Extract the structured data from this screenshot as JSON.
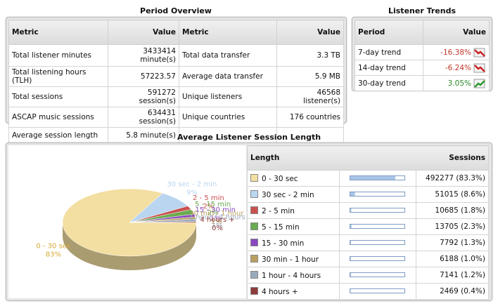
{
  "period_overview": {
    "title": "Period Overview",
    "headers": [
      "Metric",
      "Value",
      "Metric",
      "Value"
    ],
    "rows": [
      [
        "Total listener minutes",
        "3433414 minute(s)",
        "Total data transfer",
        "3.3 TB"
      ],
      [
        "Total listening hours (TLH)",
        "57223.57",
        "Average data transfer",
        "5.9 MB"
      ],
      [
        "Total sessions",
        "591272 session(s)",
        "Unique listeners",
        "46568 listener(s)"
      ],
      [
        "ASCAP music sessions",
        "634431 session(s)",
        "Unique countries",
        "176 countries"
      ],
      [
        "Average session length",
        "5.8 minute(s)"
      ]
    ]
  },
  "listener_trends": {
    "title": "Listener Trends",
    "headers": [
      "Period",
      "Value"
    ],
    "rows": [
      {
        "period": "7-day trend",
        "value": "-16.38%",
        "direction": "down"
      },
      {
        "period": "14-day trend",
        "value": "-6.24%",
        "direction": "down"
      },
      {
        "period": "30-day trend",
        "value": "3.05%",
        "direction": "up"
      }
    ]
  },
  "chart_data": {
    "type": "pie",
    "title": "Average Listener Session Length",
    "table_headers": [
      "Length",
      "Sessions"
    ],
    "categories": [
      "0 - 30 sec",
      "30 sec - 2 min",
      "2 - 5 min",
      "5 - 15 min",
      "15 - 30 min",
      "30 min - 1 hour",
      "1 hour - 4 hours",
      "4 hours +"
    ],
    "values": [
      492277,
      51015,
      10685,
      13705,
      7792,
      6188,
      7141,
      2469
    ],
    "value_labels": [
      "492277 (83.3%)",
      "51015 (8.6%)",
      "10685 (1.8%)",
      "13705 (2.3%)",
      "7792 (1.3%)",
      "6188 (1.0%)",
      "7141 (1.2%)",
      "2469 (0.4%)"
    ],
    "percent_labels": [
      "83%",
      "9%",
      "2%",
      "2%",
      "1%",
      "1%",
      "1%",
      "0%"
    ],
    "colors": [
      "#f3dfa2",
      "#b9d5f0",
      "#c9504e",
      "#6aab4f",
      "#8a48c0",
      "#b8a060",
      "#9aaabd",
      "#8e3b3b"
    ]
  }
}
